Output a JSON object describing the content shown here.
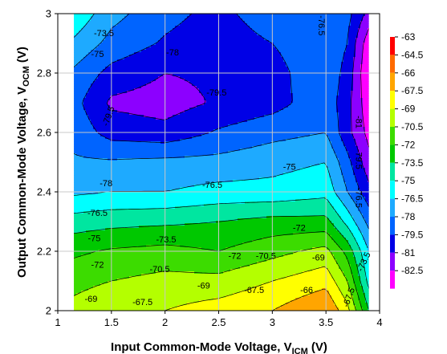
{
  "chart_data": {
    "type": "heatmap",
    "subtype": "filled-contour",
    "xlabel": {
      "main": "Input Common-Mode Voltage, V",
      "sub": "ICM",
      "unit": " (V)"
    },
    "ylabel": {
      "main": "Output Common-Mode Voltage, V",
      "sub": "OCM",
      "unit": " (V)"
    },
    "xlim": [
      1,
      4
    ],
    "ylim": [
      2,
      3
    ],
    "x_ticks": [
      "1",
      "1.5",
      "2",
      "2.5",
      "3",
      "3.5",
      "4"
    ],
    "y_ticks": [
      "2",
      "2.2",
      "2.4",
      "2.6",
      "2.8",
      "3"
    ],
    "grid": true,
    "data_x_range": [
      1.15,
      3.9
    ],
    "colorbar": {
      "placement": "right",
      "levels": [
        "-63",
        "-64.5",
        "-66",
        "-67.5",
        "-69",
        "-70.5",
        "-72",
        "-73.5",
        "-75",
        "-76.5",
        "-78",
        "-79.5",
        "-81",
        "-82.5"
      ],
      "colors": [
        "#ff0000",
        "#ff6a00",
        "#ffa500",
        "#ffff00",
        "#b4ff00",
        "#3cdc00",
        "#00c800",
        "#00e6a0",
        "#00ffff",
        "#1eaaff",
        "#0064ff",
        "#0000e6",
        "#8c00ff",
        "#ff00ff"
      ]
    },
    "x": [
      1.15,
      1.5,
      2.0,
      2.5,
      3.0,
      3.5,
      3.7,
      3.9
    ],
    "y": [
      2.0,
      2.1,
      2.2,
      2.3,
      2.4,
      2.5,
      2.6,
      2.7,
      2.8,
      2.9,
      3.0
    ],
    "z": [
      [
        -68.5,
        -67.7,
        -67.5,
        -66.8,
        -66.0,
        -64.5,
        -67.0,
        -72.0
      ],
      [
        -69.5,
        -69.0,
        -68.5,
        -68.5,
        -67.5,
        -66.5,
        -69.0,
        -74.0
      ],
      [
        -70.8,
        -70.3,
        -70.0,
        -70.5,
        -69.5,
        -68.5,
        -71.0,
        -75.0
      ],
      [
        -72.8,
        -72.5,
        -72.3,
        -72.0,
        -71.5,
        -71.5,
        -74.0,
        -77.0
      ],
      [
        -75.3,
        -75.0,
        -75.0,
        -74.5,
        -74.5,
        -74.0,
        -76.5,
        -79.0
      ],
      [
        -76.3,
        -76.3,
        -76.1,
        -76.0,
        -75.5,
        -75.0,
        -77.5,
        -80.5
      ],
      [
        -77.0,
        -78.6,
        -79.0,
        -77.8,
        -77.0,
        -76.5,
        -79.0,
        -81.5
      ],
      [
        -77.5,
        -79.8,
        -80.2,
        -79.3,
        -78.6,
        -77.0,
        -79.0,
        -82.0
      ],
      [
        -76.8,
        -78.5,
        -79.5,
        -79.2,
        -78.5,
        -77.0,
        -78.5,
        -82.5
      ],
      [
        -75.3,
        -77.0,
        -78.2,
        -79.0,
        -78.0,
        -77.0,
        -78.0,
        -82.0
      ],
      [
        -73.8,
        -76.0,
        -77.5,
        -78.5,
        -77.0,
        -76.5,
        -77.5,
        -80.0
      ]
    ],
    "contour_labels": [
      {
        "text": "-73.5",
        "x": 1.43,
        "y": 2.935,
        "rot": 0
      },
      {
        "text": "-75",
        "x": 1.37,
        "y": 2.865,
        "rot": 0
      },
      {
        "text": "-78",
        "x": 2.07,
        "y": 2.87,
        "rot": 0
      },
      {
        "text": "-76.5",
        "x": 3.46,
        "y": 2.96,
        "rot": 90
      },
      {
        "text": "-79.5",
        "x": 2.48,
        "y": 2.735,
        "rot": 0
      },
      {
        "text": "-79.5",
        "x": 1.47,
        "y": 2.655,
        "rot": -70
      },
      {
        "text": "-81",
        "x": 3.81,
        "y": 2.635,
        "rot": 90
      },
      {
        "text": "-79.5",
        "x": 3.81,
        "y": 2.51,
        "rot": 90
      },
      {
        "text": "-78",
        "x": 1.45,
        "y": 2.43,
        "rot": 0
      },
      {
        "text": "-76.5",
        "x": 3.81,
        "y": 2.38,
        "rot": 90
      },
      {
        "text": "-75",
        "x": 3.16,
        "y": 2.485,
        "rot": 0
      },
      {
        "text": "-76.5",
        "x": 2.44,
        "y": 2.425,
        "rot": 0
      },
      {
        "text": "-76.5",
        "x": 1.37,
        "y": 2.33,
        "rot": 0
      },
      {
        "text": "-75",
        "x": 1.34,
        "y": 2.245,
        "rot": 0
      },
      {
        "text": "-73.5",
        "x": 2.01,
        "y": 2.24,
        "rot": 0
      },
      {
        "text": "-72",
        "x": 3.25,
        "y": 2.28,
        "rot": 0
      },
      {
        "text": "-72",
        "x": 2.65,
        "y": 2.185,
        "rot": 0
      },
      {
        "text": "-70.5",
        "x": 2.94,
        "y": 2.185,
        "rot": 0
      },
      {
        "text": "-69",
        "x": 3.43,
        "y": 2.18,
        "rot": 0
      },
      {
        "text": "-73.5",
        "x": 3.85,
        "y": 2.165,
        "rot": -65
      },
      {
        "text": "-72",
        "x": 1.37,
        "y": 2.155,
        "rot": 0
      },
      {
        "text": "-70.5",
        "x": 1.95,
        "y": 2.14,
        "rot": 0
      },
      {
        "text": "-69",
        "x": 2.36,
        "y": 2.085,
        "rot": 0
      },
      {
        "text": "-67.5",
        "x": 2.83,
        "y": 2.07,
        "rot": 0
      },
      {
        "text": "-66",
        "x": 3.32,
        "y": 2.07,
        "rot": 0
      },
      {
        "text": "-69",
        "x": 1.31,
        "y": 2.04,
        "rot": 0
      },
      {
        "text": "-67.5",
        "x": 1.79,
        "y": 2.03,
        "rot": 0
      },
      {
        "text": "-67.5",
        "x": 3.71,
        "y": 2.045,
        "rot": -70
      }
    ]
  }
}
